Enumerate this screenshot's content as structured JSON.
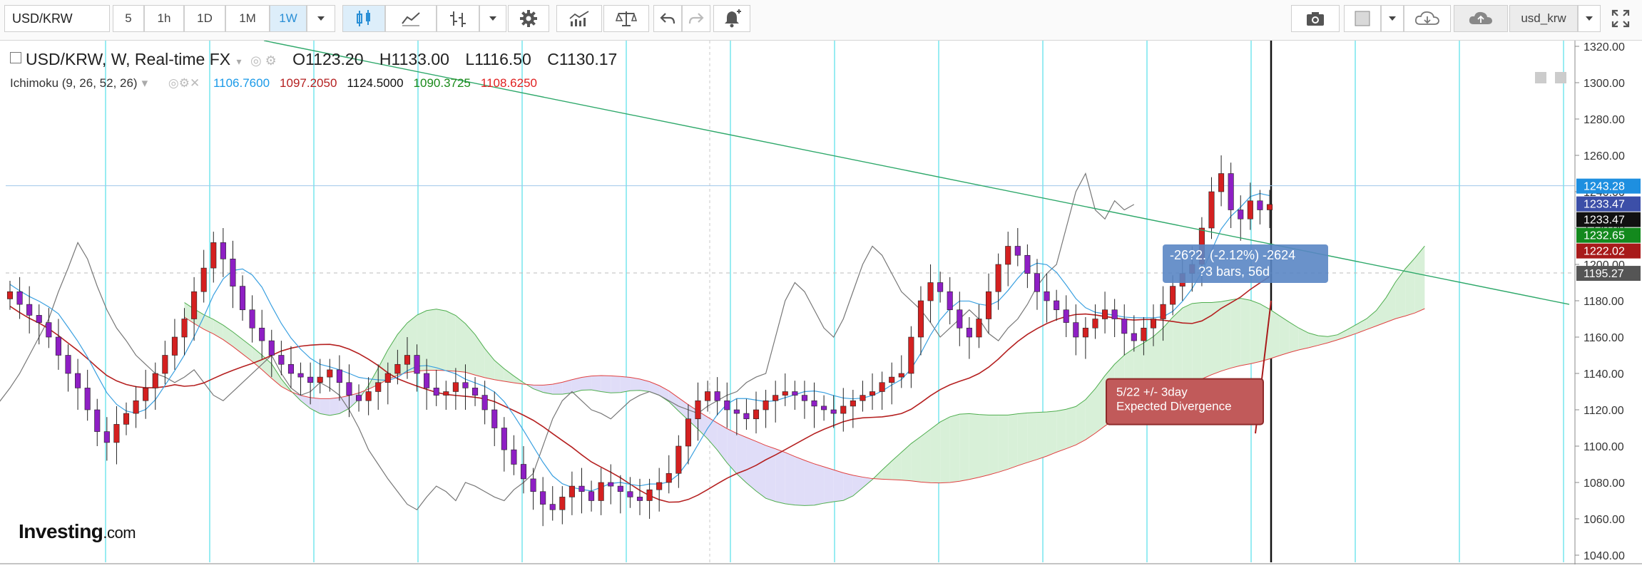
{
  "toolbar": {
    "symbol": "USD/KRW",
    "intervals": [
      "5",
      "1h",
      "1D",
      "1M",
      "1W"
    ],
    "active_interval": "1W",
    "user": "usd_krw",
    "icons": [
      "candles-icon",
      "area-chart-icon",
      "bars-icon",
      "gear-icon",
      "indicators-icon",
      "compare-icon",
      "undo-icon",
      "redo-icon",
      "alert-icon",
      "camera-icon",
      "color-square-icon",
      "cloud-download-icon",
      "cloud-upload-icon",
      "fullscreen-icon"
    ]
  },
  "legend": {
    "title": "USD/KRW, W, Real-time FX",
    "open": "O1123.20",
    "high": "H1133.00",
    "low": "L1116.50",
    "close": "C1130.17"
  },
  "indicator": {
    "name": "Ichimoku (9, 26, 52, 26)",
    "values": [
      {
        "text": "1106.7600",
        "color": "#1a9ae8"
      },
      {
        "text": "1097.2050",
        "color": "#b52020"
      },
      {
        "text": "1124.5000",
        "color": "#111111"
      },
      {
        "text": "1090.3725",
        "color": "#1a8a1a"
      },
      {
        "text": "1108.6250",
        "color": "#e02020"
      }
    ]
  },
  "price_tags": [
    {
      "text": "1243.28",
      "bg": "#1e8fe0",
      "value": 1243.28
    },
    {
      "text": "1233.47",
      "bg": "#3c4fa8",
      "value": 1233.47
    },
    {
      "text": "1233.47",
      "bg": "#111111",
      "value": 1233.47
    },
    {
      "text": "1232.65",
      "bg": "#13891d",
      "value": 1232.65
    },
    {
      "text": "1222.02",
      "bg": "#a81a1a",
      "value": 1222.02
    },
    {
      "text": "1195.27",
      "bg": "#555555",
      "value": 1195.27
    }
  ],
  "measure_box": {
    "line1": "-26?2.  (-2.12%)  -2624",
    "line2": "?3 bars, 56d"
  },
  "annotation": {
    "line1": "5/22  +/- 3day",
    "line2": "Expected Divergence"
  },
  "logo": {
    "brand": "Investing",
    "suffix": ".com"
  },
  "chart_data": {
    "type": "candlestick",
    "y_axis_ticks": [
      "1040.00",
      "1060.00",
      "1080.00",
      "1100.00",
      "1120.00",
      "1140.00",
      "1160.00",
      "1180.00",
      "1200.00",
      "1220.00",
      "1240.00",
      "1260.00",
      "1280.00",
      "1300.00",
      "1320.00"
    ],
    "ylim": [
      1040,
      1320
    ],
    "colors": {
      "up": "#d42020",
      "down": "#8e1fc4",
      "tenkan": "#3aa0e0",
      "kijun": "#b52020",
      "chikou": "#777777",
      "cloud_bull": "#d8f0d8",
      "cloud_bear": "#e0ddf8",
      "vlines": "#7fe7ee"
    },
    "close_series": [
      1185,
      1178,
      1172,
      1168,
      1160,
      1150,
      1140,
      1132,
      1120,
      1108,
      1102,
      1112,
      1118,
      1125,
      1132,
      1140,
      1150,
      1160,
      1170,
      1185,
      1198,
      1212,
      1203,
      1188,
      1175,
      1165,
      1158,
      1150,
      1145,
      1140,
      1138,
      1135,
      1138,
      1142,
      1135,
      1128,
      1125,
      1130,
      1135,
      1140,
      1145,
      1150,
      1140,
      1132,
      1128,
      1130,
      1135,
      1132,
      1128,
      1120,
      1110,
      1098,
      1090,
      1082,
      1075,
      1068,
      1065,
      1072,
      1078,
      1075,
      1070,
      1080,
      1078,
      1075,
      1072,
      1070,
      1076,
      1080,
      1085,
      1100,
      1115,
      1125,
      1130,
      1125,
      1120,
      1118,
      1115,
      1120,
      1125,
      1128,
      1130,
      1128,
      1125,
      1122,
      1120,
      1118,
      1122,
      1125,
      1128,
      1130,
      1135,
      1138,
      1140,
      1160,
      1180,
      1190,
      1185,
      1175,
      1165,
      1160,
      1170,
      1185,
      1200,
      1210,
      1205,
      1195,
      1185,
      1180,
      1175,
      1168,
      1160,
      1165,
      1170,
      1175,
      1170,
      1162,
      1158,
      1165,
      1170,
      1178,
      1188,
      1195,
      1200,
      1220,
      1240,
      1250,
      1230,
      1225,
      1235,
      1230,
      1233
    ]
  }
}
